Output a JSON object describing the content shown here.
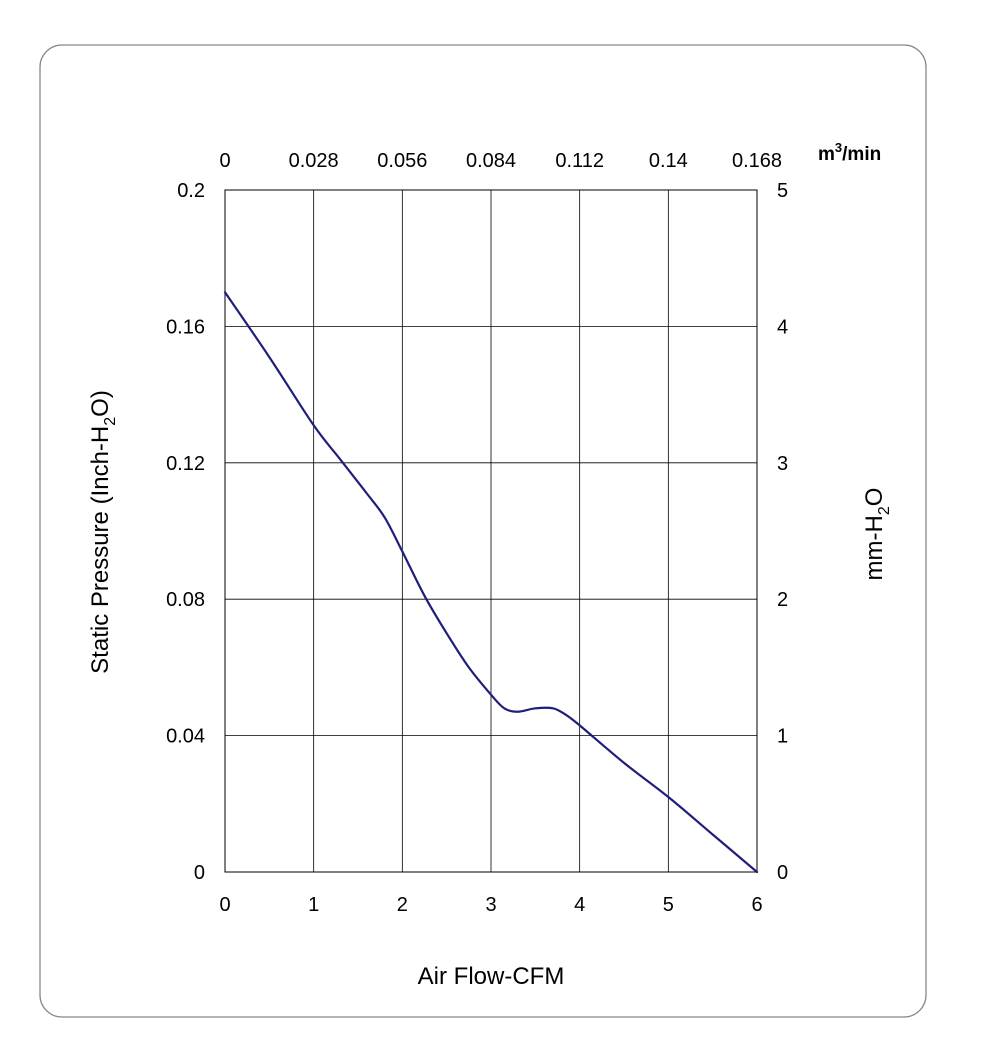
{
  "chart_data": {
    "type": "line",
    "xlabel": "Air Flow-CFM",
    "xlim": [
      0,
      6
    ],
    "x_ticks": [
      "0",
      "1",
      "2",
      "3",
      "4",
      "5",
      "6"
    ],
    "ylabel": {
      "main": "Static Pressure (Inch-H",
      "sub": "2",
      "tail": "O)"
    },
    "ylim": [
      0,
      0.2
    ],
    "y_ticks": [
      "0",
      "0.04",
      "0.08",
      "0.12",
      "0.16",
      "0.2"
    ],
    "x2label": {
      "main": "m",
      "sup": "3",
      "tail": "/min"
    },
    "x2_ticks": [
      "0",
      "0.028",
      "0.056",
      "0.084",
      "0.112",
      "0.14",
      "0.168"
    ],
    "y2label": {
      "main": "mm-H",
      "sub": "2",
      "tail": "O"
    },
    "y2_ticks": [
      "0",
      "1",
      "2",
      "3",
      "4",
      "5"
    ],
    "grid": true,
    "line_color": "#1f1f7a",
    "series": [
      {
        "x": [
          0,
          0.5,
          1.0,
          1.3,
          1.6,
          1.8,
          2.0,
          2.25,
          2.5,
          2.75,
          3.0,
          3.15,
          3.3,
          3.5,
          3.7,
          3.85,
          4.0,
          4.5,
          5.0,
          5.5,
          6.0
        ],
        "y": [
          0.17,
          0.151,
          0.131,
          0.121,
          0.111,
          0.104,
          0.094,
          0.081,
          0.07,
          0.06,
          0.052,
          0.048,
          0.047,
          0.048,
          0.048,
          0.046,
          0.043,
          0.032,
          0.022,
          0.011,
          0.0
        ]
      }
    ]
  }
}
